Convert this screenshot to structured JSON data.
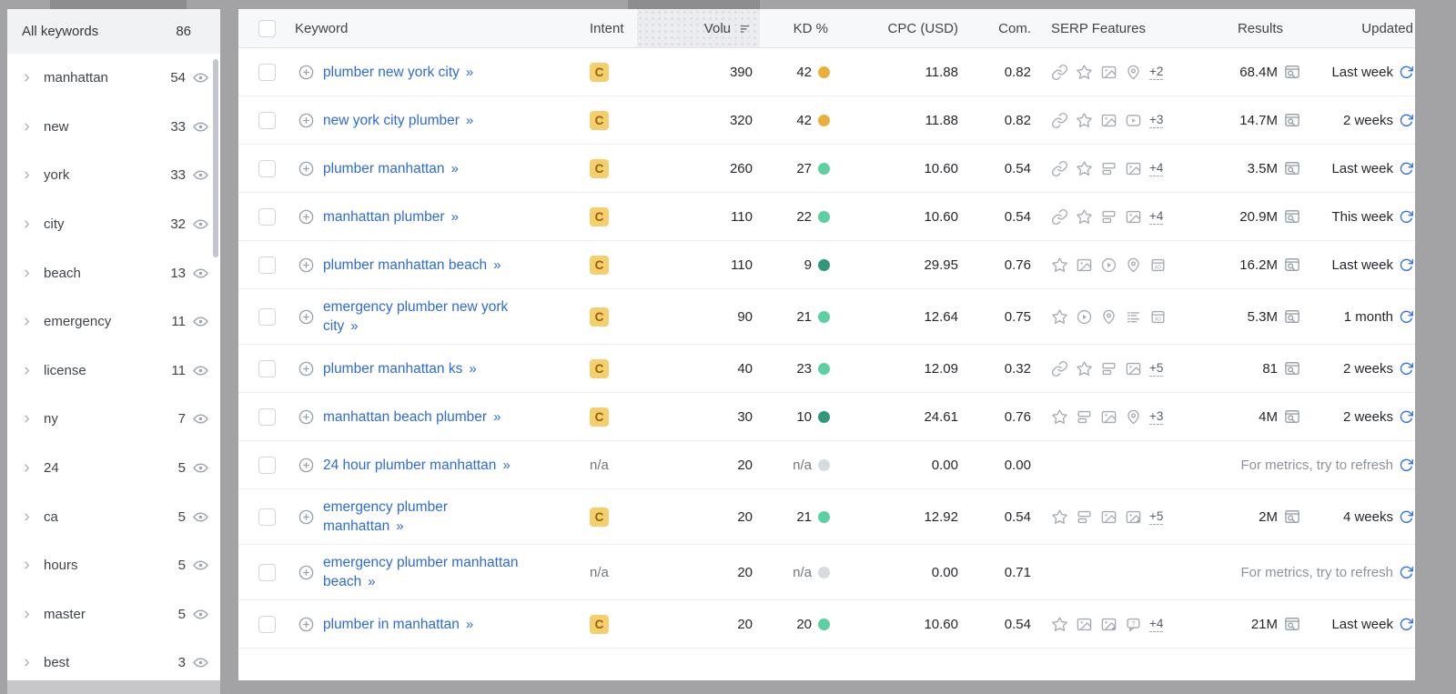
{
  "colors": {
    "link_blue": "#2e6bd8",
    "refresh_blue": "#2b6de8",
    "intent_badge_bg": "#f3cf6d",
    "intent_badge_text": "#96620c",
    "kd_medium": "#e9b03c",
    "kd_easy": "#5bd0a0",
    "kd_very_easy": "#2f9878",
    "kd_na": "#d7dade"
  },
  "sidebar": {
    "header": {
      "label": "All keywords",
      "count": "86"
    },
    "items": [
      {
        "label": "manhattan",
        "count": "54"
      },
      {
        "label": "new",
        "count": "33"
      },
      {
        "label": "york",
        "count": "33"
      },
      {
        "label": "city",
        "count": "32"
      },
      {
        "label": "beach",
        "count": "13"
      },
      {
        "label": "emergency",
        "count": "11"
      },
      {
        "label": "license",
        "count": "11"
      },
      {
        "label": "ny",
        "count": "7"
      },
      {
        "label": "24",
        "count": "5"
      },
      {
        "label": "ca",
        "count": "5"
      },
      {
        "label": "hours",
        "count": "5"
      },
      {
        "label": "master",
        "count": "5"
      },
      {
        "label": "best",
        "count": "3"
      }
    ]
  },
  "table": {
    "headers": {
      "keyword": "Keyword",
      "intent": "Intent",
      "volume": "Volu",
      "kd": "KD %",
      "cpc": "CPC (USD)",
      "com": "Com.",
      "serp": "SERP Features",
      "results": "Results",
      "updated": "Updated"
    },
    "metrics_note": "For metrics, try to refresh",
    "expand_arrows": "»",
    "rows": [
      {
        "keyword": "plumber new york city",
        "intent": "C",
        "volume": "390",
        "kd": "42",
        "kd_level": "medium",
        "cpc": "11.88",
        "com": "0.82",
        "serp_icons": [
          "link",
          "star",
          "image",
          "pin"
        ],
        "serp_more": "+2",
        "results": "68.4M",
        "updated": "Last week",
        "no_metrics": false
      },
      {
        "keyword": "new york city plumber",
        "intent": "C",
        "volume": "320",
        "kd": "42",
        "kd_level": "medium",
        "cpc": "11.88",
        "com": "0.82",
        "serp_icons": [
          "link",
          "star",
          "image",
          "video"
        ],
        "serp_more": "+3",
        "results": "14.7M",
        "updated": "2 weeks",
        "no_metrics": false
      },
      {
        "keyword": "plumber manhattan",
        "intent": "C",
        "volume": "260",
        "kd": "27",
        "kd_level": "easy",
        "cpc": "10.60",
        "com": "0.54",
        "serp_icons": [
          "link",
          "star",
          "sitelinks",
          "image"
        ],
        "serp_more": "+4",
        "results": "3.5M",
        "updated": "Last week",
        "no_metrics": false
      },
      {
        "keyword": "manhattan plumber",
        "intent": "C",
        "volume": "110",
        "kd": "22",
        "kd_level": "easy",
        "cpc": "10.60",
        "com": "0.54",
        "serp_icons": [
          "link",
          "star",
          "sitelinks",
          "image"
        ],
        "serp_more": "+4",
        "results": "20.9M",
        "updated": "This week",
        "no_metrics": false
      },
      {
        "keyword": "plumber manhattan beach",
        "intent": "C",
        "volume": "110",
        "kd": "9",
        "kd_level": "very-easy",
        "cpc": "29.95",
        "com": "0.76",
        "serp_icons": [
          "star",
          "image",
          "play",
          "pin",
          "ad"
        ],
        "serp_more": "",
        "results": "16.2M",
        "updated": "Last week",
        "no_metrics": false
      },
      {
        "keyword": "emergency plumber new york city",
        "intent": "C",
        "volume": "90",
        "kd": "21",
        "kd_level": "easy",
        "cpc": "12.64",
        "com": "0.75",
        "serp_icons": [
          "star",
          "play",
          "pin",
          "list",
          "ad"
        ],
        "serp_more": "",
        "results": "5.3M",
        "updated": "1 month",
        "no_metrics": false
      },
      {
        "keyword": "plumber manhattan ks",
        "intent": "C",
        "volume": "40",
        "kd": "23",
        "kd_level": "easy",
        "cpc": "12.09",
        "com": "0.32",
        "serp_icons": [
          "link",
          "star",
          "sitelinks",
          "image"
        ],
        "serp_more": "+5",
        "results": "81",
        "updated": "2 weeks",
        "no_metrics": false
      },
      {
        "keyword": "manhattan beach plumber",
        "intent": "C",
        "volume": "30",
        "kd": "10",
        "kd_level": "very-easy",
        "cpc": "24.61",
        "com": "0.76",
        "serp_icons": [
          "star",
          "sitelinks",
          "image",
          "pin"
        ],
        "serp_more": "+3",
        "results": "4M",
        "updated": "2 weeks",
        "no_metrics": false
      },
      {
        "keyword": "24 hour plumber manhattan",
        "intent": "n/a",
        "volume": "20",
        "kd": "n/a",
        "kd_level": "na",
        "cpc": "0.00",
        "com": "0.00",
        "serp_icons": [],
        "serp_more": "",
        "results": "",
        "updated": "",
        "no_metrics": true
      },
      {
        "keyword": "emergency plumber manhattan",
        "intent": "C",
        "volume": "20",
        "kd": "21",
        "kd_level": "easy",
        "cpc": "12.92",
        "com": "0.54",
        "serp_icons": [
          "star",
          "sitelinks",
          "image",
          "image-fold"
        ],
        "serp_more": "+5",
        "results": "2M",
        "updated": "4 weeks",
        "no_metrics": false
      },
      {
        "keyword": "emergency plumber manhattan beach",
        "intent": "n/a",
        "volume": "20",
        "kd": "n/a",
        "kd_level": "na",
        "cpc": "0.00",
        "com": "0.71",
        "serp_icons": [],
        "serp_more": "",
        "results": "",
        "updated": "",
        "no_metrics": true
      },
      {
        "keyword": "plumber in manhattan",
        "intent": "C",
        "volume": "20",
        "kd": "20",
        "kd_level": "easy",
        "cpc": "10.60",
        "com": "0.54",
        "serp_icons": [
          "star",
          "image",
          "image-fold",
          "bubble"
        ],
        "serp_more": "+4",
        "results": "21M",
        "updated": "Last week",
        "no_metrics": false
      }
    ]
  }
}
